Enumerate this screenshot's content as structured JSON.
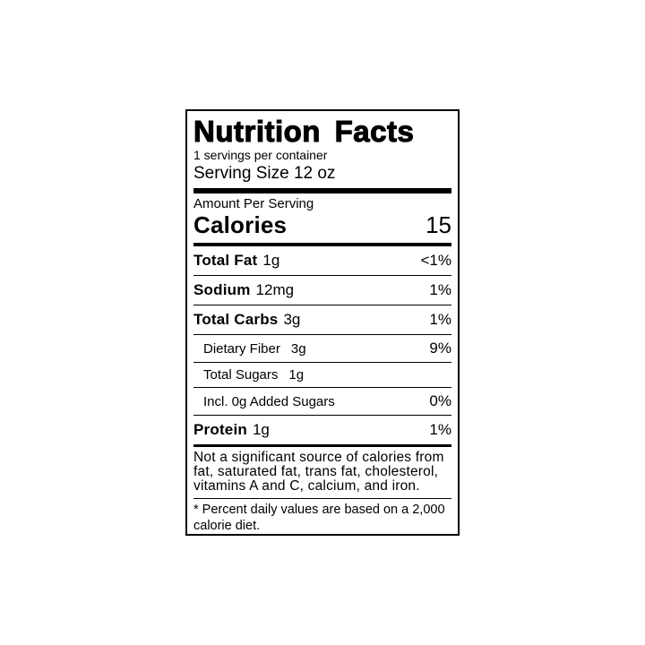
{
  "label": {
    "title": "Nutrition Facts",
    "servings_per_container": "1 servings per container",
    "serving_size": "Serving Size 12 oz",
    "amount_per_serving": "Amount Per Serving",
    "calories_label": "Calories",
    "calories_value": "15",
    "rows": [
      {
        "name": "Total Fat",
        "amount": "1g",
        "dv": "<1%",
        "bold": true,
        "indent": 0
      },
      {
        "name": "Sodium",
        "amount": "12mg",
        "dv": "1%",
        "bold": true,
        "indent": 0
      },
      {
        "name": "Total Carbs",
        "amount": "3g",
        "dv": "1%",
        "bold": true,
        "indent": 0
      },
      {
        "name": "Dietary Fiber",
        "amount": "3g",
        "dv": "9%",
        "bold": false,
        "indent": 1
      },
      {
        "name": "Total Sugars",
        "amount": "1g",
        "dv": "",
        "bold": false,
        "indent": 1
      },
      {
        "name": "Incl. 0g Added Sugars",
        "amount": "",
        "dv": "0%",
        "bold": false,
        "indent": 1
      },
      {
        "name": "Protein",
        "amount": "1g",
        "dv": "1%",
        "bold": true,
        "indent": 0
      }
    ],
    "footnote_insignificant": "Not a significant source of calories from fat, saturated fat, trans fat, cholesterol, vitamins A and C, calcium, and iron.",
    "footnote_percent": "* Percent daily values are based on a 2,000 calorie diet.",
    "colors": {
      "ink": "#000000",
      "paper": "#ffffff"
    }
  }
}
